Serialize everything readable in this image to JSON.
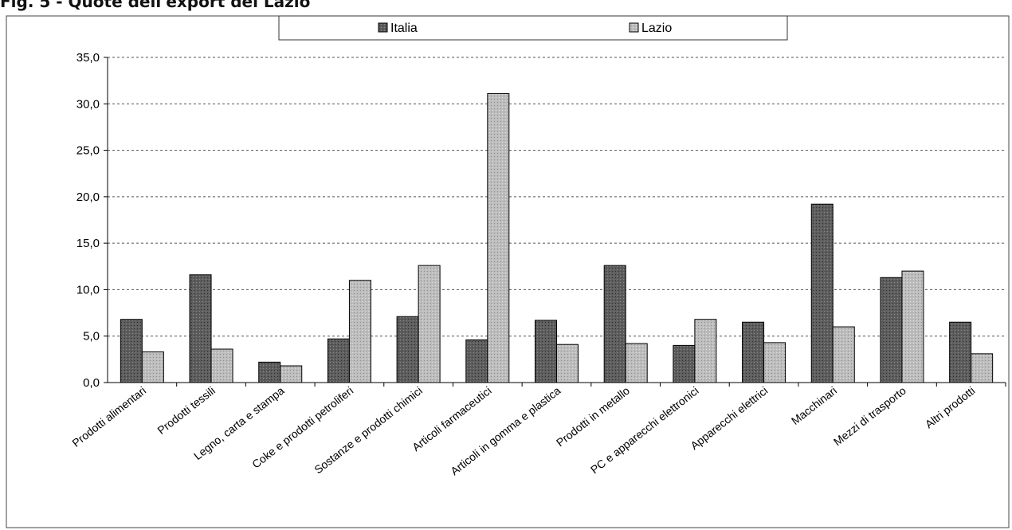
{
  "caption": "Fig. 5 - Quote dell'export del Lazio",
  "chart_data": {
    "type": "bar",
    "title": "",
    "xlabel": "",
    "ylabel": "",
    "ylim": [
      0,
      35
    ],
    "y_ticks": [
      "0,0",
      "5,0",
      "10,0",
      "15,0",
      "20,0",
      "25,0",
      "30,0",
      "35,0"
    ],
    "grid": "horizontal dashed",
    "legend_position": "top",
    "categories": [
      "Prodotti alimentari",
      "Prodotti tessili",
      "Legno, carta e stampa",
      "Coke e prodotti petroliferi",
      "Sostanze e prodotti chimici",
      "Articoli farmaceutici",
      "Articoli in gomma e plastica",
      "Prodotti in metallo",
      "PC e apparecchi elettronici",
      "Apparecchi elettrici",
      "Macchinari",
      "Mezzi di trasporto",
      "Altri prodotti"
    ],
    "series": [
      {
        "name": "Italia",
        "color": "#5a5a5a",
        "values": [
          6.8,
          11.6,
          2.2,
          4.7,
          7.1,
          4.6,
          6.7,
          12.6,
          4.0,
          6.5,
          19.2,
          11.3,
          6.5
        ]
      },
      {
        "name": "Lazio",
        "color": "#b8b8b8",
        "values": [
          3.3,
          3.6,
          1.8,
          11.0,
          12.6,
          31.1,
          4.1,
          4.2,
          6.8,
          4.3,
          6.0,
          12.0,
          3.1
        ]
      }
    ]
  }
}
